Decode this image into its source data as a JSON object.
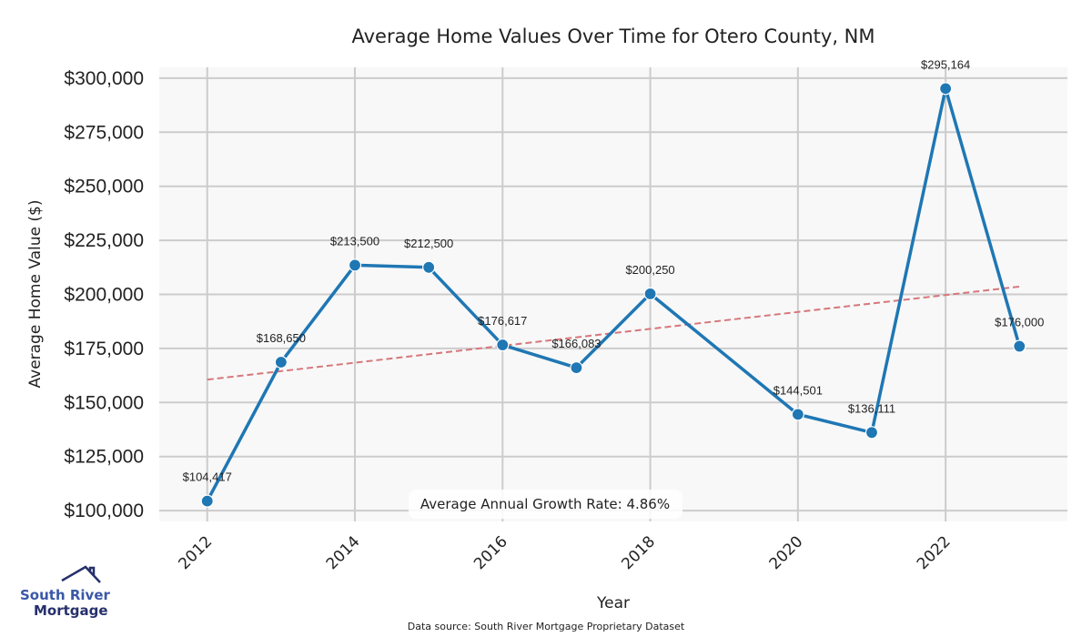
{
  "chart_data": {
    "type": "line",
    "title": "Average Home Values Over Time for Otero County, NM",
    "xlabel": "Year",
    "ylabel": "Average Home Value ($)",
    "x": [
      2012,
      2013,
      2014,
      2015,
      2016,
      2017,
      2018,
      2020,
      2021,
      2022,
      2023
    ],
    "values": [
      104417,
      168650,
      213500,
      212500,
      176617,
      166083,
      200250,
      144501,
      136111,
      295164,
      176000
    ],
    "data_labels": [
      "$104,417",
      "$168,650",
      "$213,500",
      "$212,500",
      "$176,617",
      "$166,083",
      "$200,250",
      "$144,501",
      "$136,111",
      "$295,164",
      "$176,000"
    ],
    "xticks": [
      2012,
      2014,
      2016,
      2018,
      2020,
      2022
    ],
    "xtick_labels": [
      "2012",
      "2014",
      "2016",
      "2018",
      "2020",
      "2022"
    ],
    "yticks": [
      100000,
      125000,
      150000,
      175000,
      200000,
      225000,
      250000,
      275000,
      300000
    ],
    "ytick_labels": [
      "$100,000",
      "$125,000",
      "$150,000",
      "$175,000",
      "$200,000",
      "$225,000",
      "$250,000",
      "$275,000",
      "$300,000"
    ],
    "xlim": [
      2011.35,
      2023.65
    ],
    "ylim": [
      95000,
      305000
    ],
    "grid": true,
    "trend_line": {
      "x": [
        2012,
        2023
      ],
      "y": [
        160600,
        203600
      ],
      "style": "dashed"
    },
    "annotation": "Average Annual Growth Rate: 4.86%",
    "colors": {
      "line": "#1f77b4",
      "trend": "#d6777b",
      "grid": "#cccccc",
      "plot_bg": "#f8f8f8"
    }
  },
  "footer": {
    "source": "Data source: South River Mortgage Proprietary Dataset",
    "logo_line1": "South River",
    "logo_line2": "Mortgage"
  }
}
